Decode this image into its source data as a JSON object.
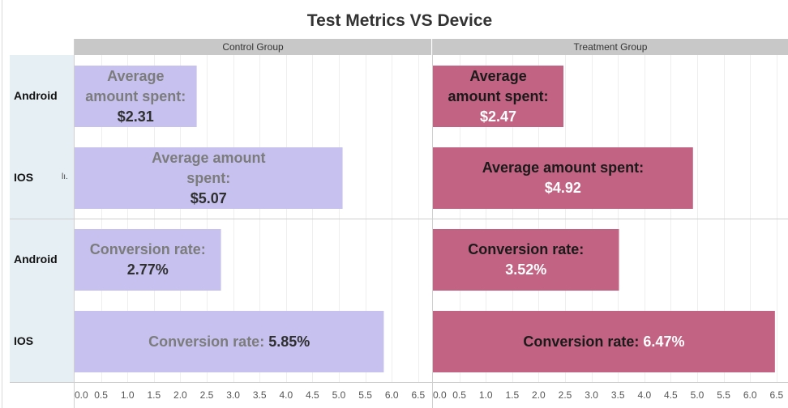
{
  "chart_data": {
    "type": "bar",
    "title": "Test Metrics VS Device",
    "columns": [
      "Control Group",
      "Treatment Group"
    ],
    "rows": [
      "Android",
      "IOS",
      "Android",
      "IOS"
    ],
    "measures": [
      "Average amount spent",
      "Average amount spent",
      "Conversion rate",
      "Conversion rate"
    ],
    "xlim": [
      0,
      6.5
    ],
    "xticks": [
      "0.0",
      "0.5",
      "1.0",
      "1.5",
      "2.0",
      "2.5",
      "3.0",
      "3.5",
      "4.0",
      "4.5",
      "5.0",
      "5.5",
      "6.0",
      "6.5"
    ],
    "grid": true,
    "series": [
      {
        "values": [
          2.31,
          5.07,
          2.77,
          5.85
        ],
        "labels": [
          [
            "Average",
            "amount spent:",
            "$2.31"
          ],
          [
            "Average amount",
            "spent:",
            "$5.07"
          ],
          [
            "Conversion rate:",
            "2.77%"
          ],
          [
            "Conversion rate: 5.85%"
          ]
        ]
      },
      {
        "values": [
          2.47,
          4.92,
          3.52,
          6.47
        ],
        "labels": [
          [
            "Average",
            "amount spent:",
            "$2.47"
          ],
          [
            "Average amount spent:",
            "$4.92"
          ],
          [
            "Conversion rate:",
            "3.52%"
          ],
          [
            "Conversion rate: 6.47%"
          ]
        ]
      }
    ],
    "colors": {
      "control_bar": "#c6c1ef",
      "treatment_bar": "#c36383",
      "control_label": "#7c7c7c",
      "control_value": "#2f2f2f",
      "treatment_label": "#1a1a1a",
      "treatment_value": "#ffffff"
    }
  },
  "decor": {
    "small_glyph": "lı."
  }
}
